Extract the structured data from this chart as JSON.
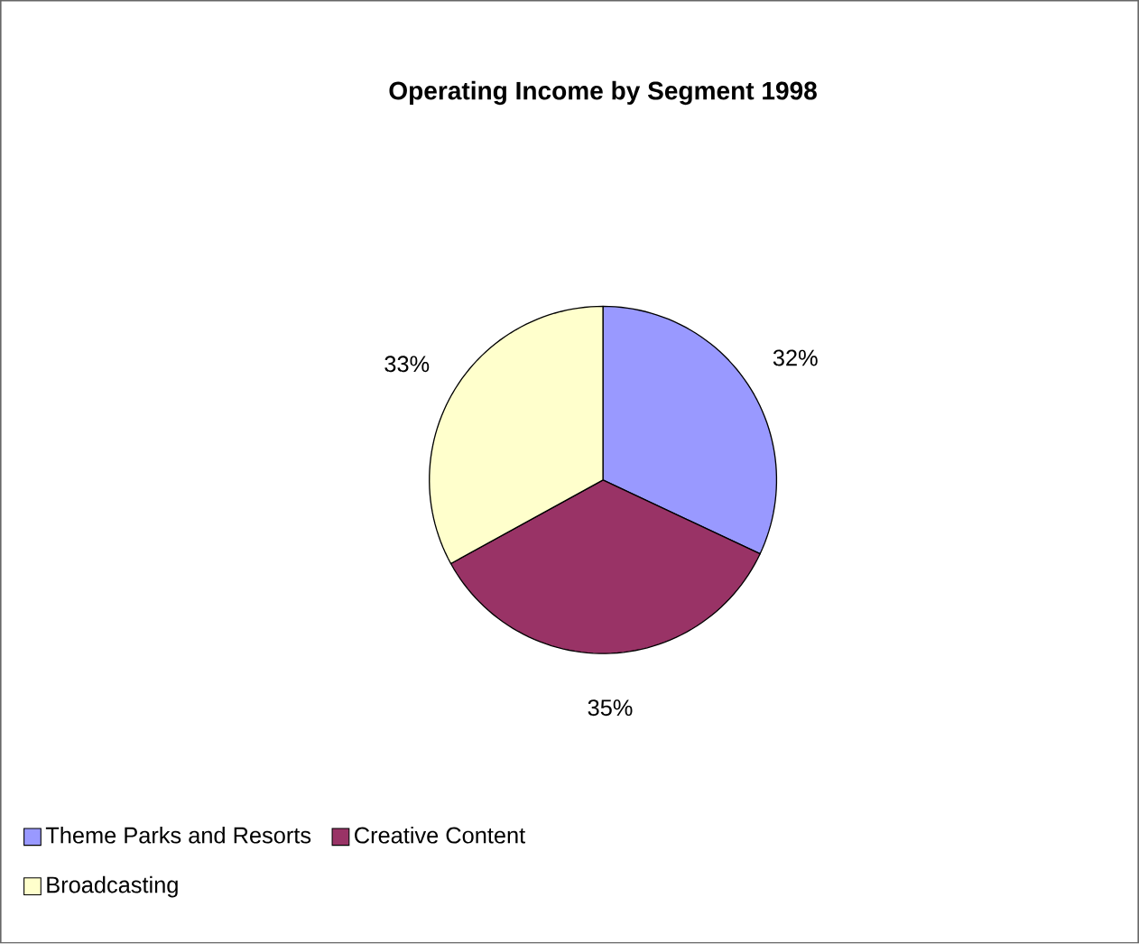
{
  "chart_data": {
    "type": "pie",
    "title": "Operating Income by Segment 1998",
    "categories": [
      "Theme Parks and Resorts",
      "Creative Content",
      "Broadcasting"
    ],
    "values": [
      32,
      35,
      33
    ],
    "colors": [
      "#9999ff",
      "#993366",
      "#ffffcc"
    ],
    "value_labels": [
      "32%",
      "35%",
      "33%"
    ],
    "legend": "bottom"
  }
}
